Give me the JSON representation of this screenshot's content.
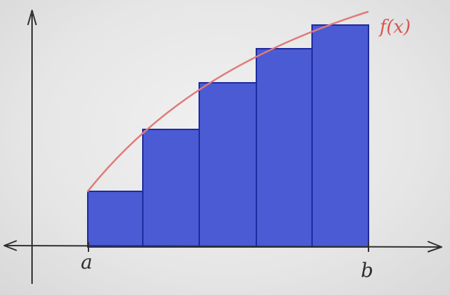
{
  "diagram": {
    "labels": {
      "function": "f(x)",
      "lower_bound": "a",
      "upper_bound": "b"
    },
    "colors": {
      "background": "#ebebeb",
      "axis": "#2f2f2f",
      "curve": "#e07a7a",
      "function_label": "#d9534f",
      "bar_fill": "#4b5bd3",
      "bar_stroke": "#1d2a9e"
    },
    "rectangles": {
      "count": 5,
      "type": "left-endpoint"
    }
  }
}
